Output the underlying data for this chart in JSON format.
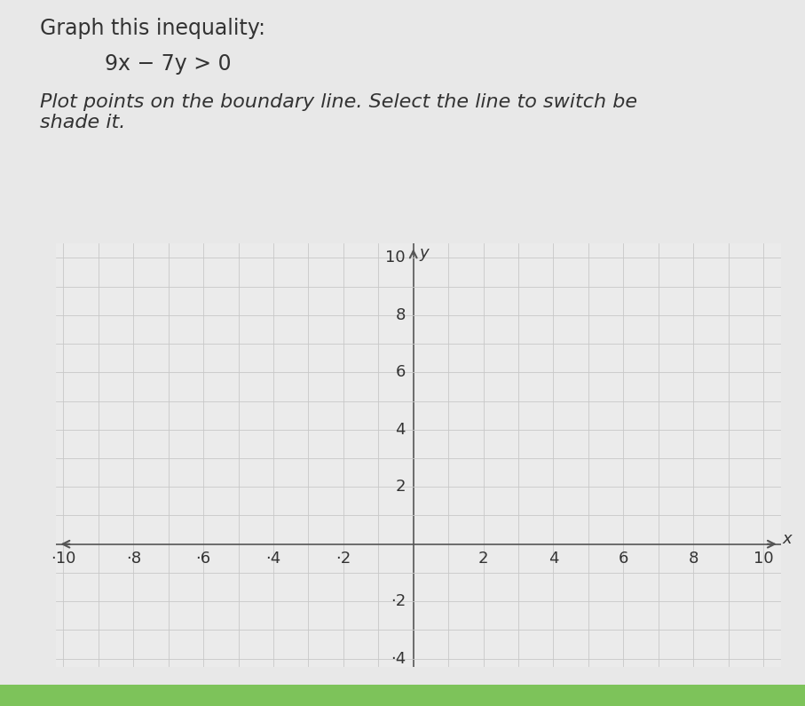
{
  "title_line1": "Graph this inequality:",
  "equation": "9x − 7y > 0",
  "instruction": "Plot points on the boundary line. Select the line to switch be\nshade it.",
  "xlim": [
    -10,
    10
  ],
  "ylim": [
    -4,
    10
  ],
  "xticks": [
    -10,
    -8,
    -6,
    -4,
    -2,
    2,
    4,
    6,
    8,
    10
  ],
  "yticks": [
    -4,
    -2,
    2,
    4,
    6,
    8,
    10
  ],
  "grid_color": "#c8c8c8",
  "background_color": "#e8e8e8",
  "plot_bg_color": "#ebebeb",
  "axis_color": "#555555",
  "text_color": "#333333",
  "title_fontsize": 17,
  "equation_fontsize": 17,
  "instruction_fontsize": 16,
  "tick_fontsize": 13,
  "green_bar_color": "#7dc35a"
}
